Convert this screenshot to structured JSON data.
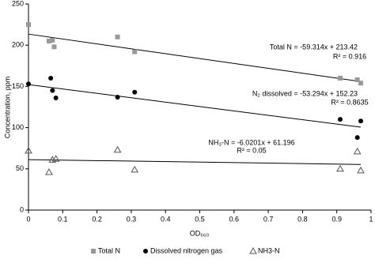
{
  "chart_data": {
    "type": "scatter",
    "x_label": "OD₆₆₀",
    "y_label": "Concentration, ppm",
    "xlim": [
      0,
      1
    ],
    "xticks": [
      0,
      0.1,
      0.2,
      0.3,
      0.4,
      0.5,
      0.6,
      0.7,
      0.8,
      0.9,
      1
    ],
    "ylim": [
      0,
      250
    ],
    "yticks": [
      0,
      50,
      100,
      150,
      200,
      250
    ],
    "grid": false,
    "legend": "bottom",
    "series": [
      {
        "name": "Total N",
        "color": "#999999",
        "marker": "square",
        "x": [
          0,
          0.06,
          0.07,
          0.075,
          0.26,
          0.31,
          0.91,
          0.96,
          0.97
        ],
        "values": [
          225,
          205,
          206,
          198,
          210,
          192,
          160,
          158,
          154
        ],
        "trend": {
          "slope": -59.314,
          "intercept": 213.42,
          "label": "Total N = -59.314x + 213.42",
          "r2_label": "R² = 0.916"
        }
      },
      {
        "name": "Dissolved nitrogen gas",
        "color": "#000000",
        "marker": "circle",
        "x": [
          0,
          0.065,
          0.07,
          0.08,
          0.26,
          0.31,
          0.91,
          0.96,
          0.97
        ],
        "values": [
          153,
          160,
          145,
          136,
          137,
          143,
          110,
          88,
          108
        ],
        "trend": {
          "slope": -53.294,
          "intercept": 152.23,
          "label": "N₂ dissolved = -53.294x + 152.23",
          "r2_label": "R² = 0.8635"
        }
      },
      {
        "name": "NH3-N",
        "color": "#555555",
        "marker": "triangle",
        "x": [
          0,
          0.06,
          0.07,
          0.08,
          0.26,
          0.31,
          0.91,
          0.96,
          0.97
        ],
        "values": [
          72,
          46,
          61,
          62,
          73,
          49,
          50,
          71,
          48
        ],
        "trend": {
          "slope": -6.0201,
          "intercept": 61.196,
          "label": "NH₃-N = -6.0201x + 61.196",
          "r2_label": "R² = 0.05"
        }
      }
    ]
  }
}
